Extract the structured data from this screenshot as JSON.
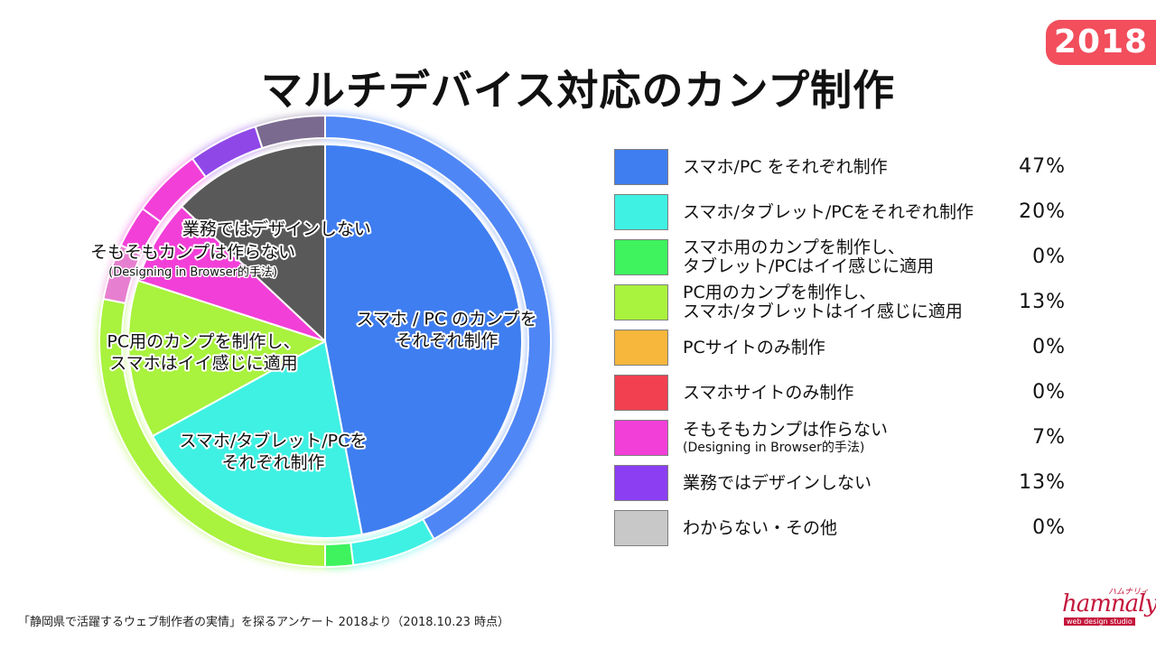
{
  "badge": "2018",
  "title": "マルチデバイス対応のカンプ制作",
  "chart_data": {
    "type": "pie",
    "title": "マルチデバイス対応のカンプ制作",
    "unit": "%",
    "slices": [
      {
        "label": "スマホ/PC をそれぞれ制作",
        "pie_label": [
          "スマホ / PC のカンプを",
          "それぞれ制作"
        ],
        "pie_sub": "",
        "value": 47,
        "color": "#3f7ef0",
        "value_label": "47%"
      },
      {
        "label": "スマホ/タブレット/PCをそれぞれ制作",
        "pie_label": [
          "スマホ/タブレット/PCを",
          "それぞれ制作"
        ],
        "pie_sub": "",
        "value": 20,
        "color": "#3ff1e3",
        "value_label": "20%"
      },
      {
        "label": "スマホ用のカンプを制作し、タブレット/PCはイイ感じに適用",
        "pie_label": [],
        "pie_sub": "",
        "value": 0,
        "color": "#3ef35e",
        "value_label": "0%"
      },
      {
        "label": "PC用のカンプを制作し、スマホ/タブレットはイイ感じに適用",
        "pie_label": [
          "PC用のカンプを制作し、",
          "スマホはイイ感じに適用"
        ],
        "pie_sub": "",
        "value": 13,
        "color": "#a9f23d",
        "value_label": "13%"
      },
      {
        "label": "PCサイトのみ制作",
        "pie_label": [],
        "pie_sub": "",
        "value": 0,
        "color": "#f6b73c",
        "value_label": "0%"
      },
      {
        "label": "スマホサイトのみ制作",
        "pie_label": [],
        "pie_sub": "",
        "value": 0,
        "color": "#f24050",
        "value_label": "0%"
      },
      {
        "label": "そもそもカンプは作らない(Designing in Browser的手法)",
        "pie_label": [
          "そもそもカンプは作らない"
        ],
        "pie_sub": "(Designing in Browser的手法)",
        "value": 7,
        "color": "#f23fd8",
        "value_label": "7%"
      },
      {
        "label": "業務ではデザインしない",
        "pie_label": [
          "業務ではデザインしない"
        ],
        "pie_sub": "",
        "value": 13,
        "color": "#595959",
        "value_label": "13%"
      },
      {
        "label": "わからない・その他",
        "pie_label": [],
        "pie_sub": "",
        "value": 0,
        "color": "#c8c8c8",
        "value_label": "0%"
      }
    ],
    "ring_previous": [
      {
        "value": 42,
        "color": "#4f86f5"
      },
      {
        "value": 6,
        "color": "#3ff1e3"
      },
      {
        "value": 2,
        "color": "#3ef35e"
      },
      {
        "value": 28,
        "color": "#a9f23d"
      },
      {
        "value": 4,
        "color": "#e77fd0"
      },
      {
        "value": 3,
        "color": "#f23fd8"
      },
      {
        "value": 5,
        "color": "#f23fd8"
      },
      {
        "value": 5,
        "color": "#8f47e8"
      },
      {
        "value": 5,
        "color": "#7a6a8f"
      }
    ],
    "legend": [
      {
        "lines": [
          "スマホ/PC をそれぞれ制作"
        ],
        "sub": "",
        "pct": "47%",
        "color": "#3f7ef0"
      },
      {
        "lines": [
          "スマホ/タブレット/PCをそれぞれ制作"
        ],
        "sub": "",
        "pct": "20%",
        "color": "#3ff1e3"
      },
      {
        "lines": [
          "スマホ用のカンプを制作し、",
          "タブレット/PCはイイ感じに適用"
        ],
        "sub": "",
        "pct": "0%",
        "color": "#3ef35e"
      },
      {
        "lines": [
          "PC用のカンプを制作し、",
          "スマホ/タブレットはイイ感じに適用"
        ],
        "sub": "",
        "pct": "13%",
        "color": "#a9f23d"
      },
      {
        "lines": [
          "PCサイトのみ制作"
        ],
        "sub": "",
        "pct": "0%",
        "color": "#f6b73c"
      },
      {
        "lines": [
          "スマホサイトのみ制作"
        ],
        "sub": "",
        "pct": "0%",
        "color": "#f24050"
      },
      {
        "lines": [
          "そもそもカンプは作らない"
        ],
        "sub": "(Designing in Browser的手法)",
        "pct": "7%",
        "color": "#f23fd8"
      },
      {
        "lines": [
          "業務ではデザインしない"
        ],
        "sub": "",
        "pct": "13%",
        "color": "#8b3ef2"
      },
      {
        "lines": [
          "わからない・その他"
        ],
        "sub": "",
        "pct": "0%",
        "color": "#c8c8c8"
      }
    ]
  },
  "footnote": "「静岡県で活躍するウェブ制作者の実情」を探るアンケート 2018より（2018.10.23 時点）",
  "logo": {
    "main": "hamnaly",
    "small": "ハムナリィ",
    "tag": "web design studio"
  }
}
